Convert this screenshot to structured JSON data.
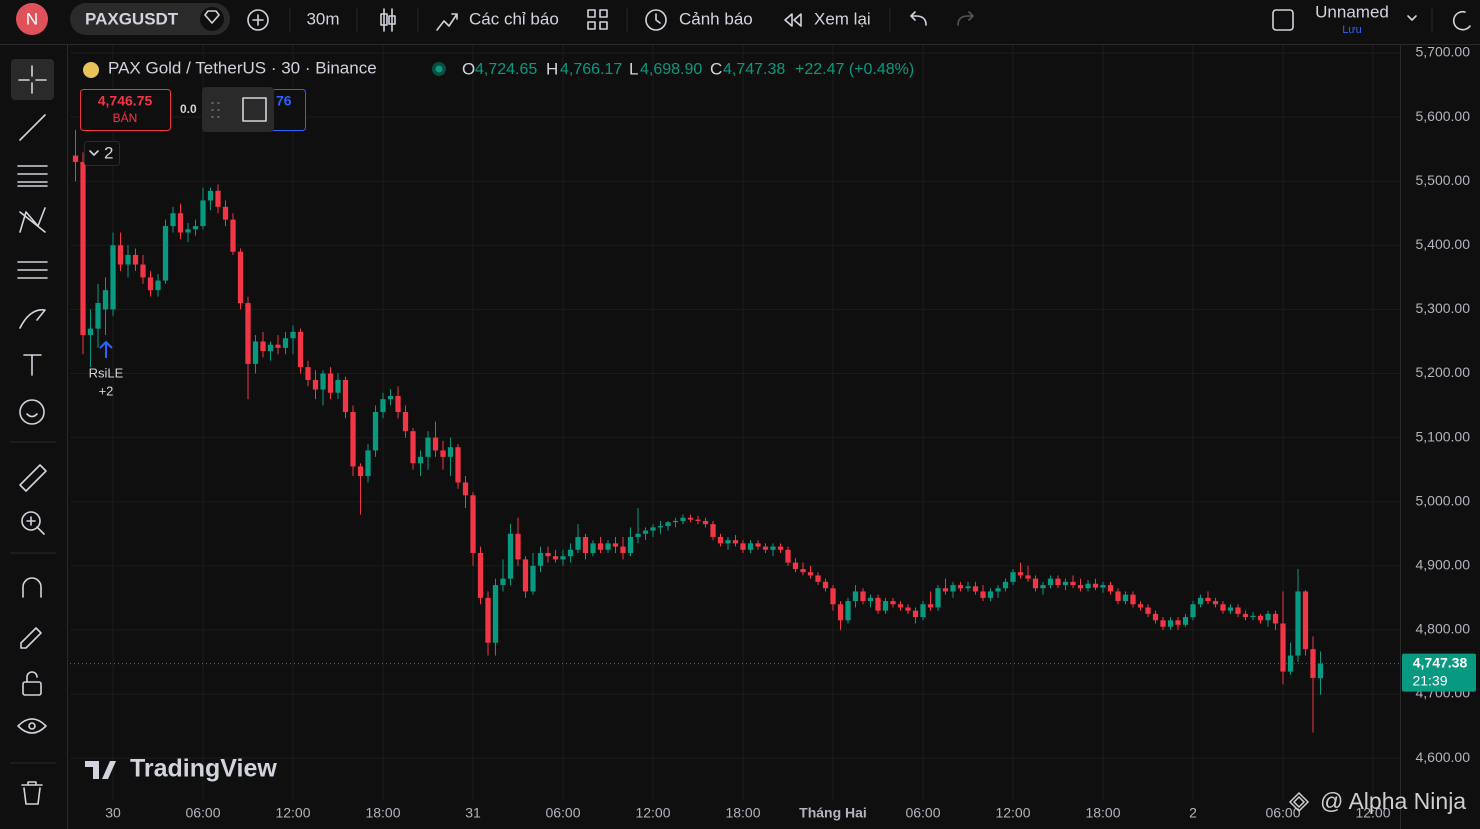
{
  "toolbar": {
    "avatar": "N",
    "symbol": "PAXGUSDT",
    "interval": "30m",
    "indicators": "Các chỉ báo",
    "alerts": "Cảnh báo",
    "replay": "Xem lại",
    "layout_name": "Unnamed",
    "save": "Lưu"
  },
  "legend": {
    "title": "PAX Gold / TetherUS · 30 · Binance",
    "o_label": "O",
    "o": "4,724.65",
    "h_label": "H",
    "h": "4,766.17",
    "l_label": "L",
    "l": "4,698.90",
    "c_label": "C",
    "c": "4,747.38",
    "change": "+22.47 (+0.48%)"
  },
  "trade": {
    "sell_price": "4,746.75",
    "sell_label": "BÁN",
    "spread": "0.0",
    "buy_price": "76"
  },
  "indicator_count": "2",
  "signal": {
    "label": "RsiLE",
    "count": "+2"
  },
  "watermark": "TradingView",
  "credit": "@ Alpha Ninja",
  "chart_data": {
    "type": "candlestick",
    "up_color": "#089981",
    "down_color": "#f23645",
    "grid": true,
    "x": [
      -2.5,
      -2,
      -1.5,
      -1,
      -0.5,
      0,
      0.5,
      1,
      1.5,
      2,
      2.5,
      3,
      3.5,
      4,
      4.5,
      5,
      5.5,
      6,
      6.5,
      7,
      7.5,
      8,
      8.5,
      9,
      9.5,
      10,
      10.5,
      11,
      11.5,
      12,
      12.5,
      13,
      13.5,
      14,
      14.5,
      15,
      15.5,
      16,
      16.5,
      17,
      17.5,
      18,
      18.5,
      19,
      19.5,
      20,
      20.5,
      21,
      21.5,
      22,
      22.5,
      23,
      23.5,
      24,
      24.5,
      25,
      25.5,
      26,
      26.5,
      27,
      27.5,
      28,
      28.5,
      29,
      29.5,
      30,
      30.5,
      31,
      31.5,
      32,
      32.5,
      33,
      33.5,
      34,
      34.5,
      35,
      35.5,
      36,
      36.5,
      37,
      37.5,
      38,
      38.5,
      39,
      39.5,
      40,
      40.5,
      41,
      41.5,
      42,
      42.5,
      43,
      43.5,
      44,
      44.5,
      45,
      45.5,
      46,
      46.5,
      47,
      47.5,
      48,
      48.5,
      49,
      49.5,
      50,
      50.5,
      51,
      51.5,
      52,
      52.5,
      53,
      53.5,
      54,
      54.5,
      55,
      55.5,
      56,
      56.5,
      57,
      57.5,
      58,
      58.5,
      59,
      59.5,
      60,
      60.5,
      61,
      61.5,
      62,
      62.5,
      63,
      63.5,
      64,
      64.5,
      65,
      65.5,
      66,
      66.5,
      67,
      67.5,
      68,
      68.5,
      69,
      69.5,
      70,
      70.5,
      71,
      71.5,
      72,
      72.5,
      73,
      73.5,
      74,
      74.5,
      75,
      75.5,
      76,
      76.5,
      77,
      77.5,
      78,
      78.5,
      79,
      79.5,
      80,
      80.5
    ],
    "ohlc": [
      [
        5540,
        5580,
        5500,
        5530
      ],
      [
        5530,
        5545,
        5230,
        5260
      ],
      [
        5260,
        5300,
        5210,
        5270
      ],
      [
        5270,
        5340,
        5240,
        5310
      ],
      [
        5300,
        5350,
        5260,
        5330
      ],
      [
        5300,
        5420,
        5290,
        5400
      ],
      [
        5400,
        5420,
        5360,
        5370
      ],
      [
        5370,
        5400,
        5350,
        5385
      ],
      [
        5385,
        5395,
        5360,
        5370
      ],
      [
        5370,
        5385,
        5340,
        5350
      ],
      [
        5350,
        5360,
        5320,
        5330
      ],
      [
        5330,
        5355,
        5320,
        5345
      ],
      [
        5345,
        5440,
        5340,
        5430
      ],
      [
        5430,
        5460,
        5420,
        5450
      ],
      [
        5450,
        5465,
        5410,
        5420
      ],
      [
        5420,
        5435,
        5405,
        5425
      ],
      [
        5425,
        5440,
        5415,
        5430
      ],
      [
        5430,
        5490,
        5425,
        5470
      ],
      [
        5470,
        5490,
        5455,
        5485
      ],
      [
        5485,
        5495,
        5450,
        5460
      ],
      [
        5460,
        5470,
        5430,
        5440
      ],
      [
        5440,
        5450,
        5385,
        5390
      ],
      [
        5390,
        5395,
        5300,
        5310
      ],
      [
        5310,
        5320,
        5160,
        5215
      ],
      [
        5215,
        5260,
        5200,
        5250
      ],
      [
        5250,
        5265,
        5225,
        5235
      ],
      [
        5235,
        5250,
        5220,
        5245
      ],
      [
        5245,
        5260,
        5230,
        5240
      ],
      [
        5240,
        5265,
        5230,
        5255
      ],
      [
        5255,
        5275,
        5230,
        5265
      ],
      [
        5265,
        5270,
        5200,
        5210
      ],
      [
        5210,
        5220,
        5180,
        5190
      ],
      [
        5190,
        5205,
        5160,
        5175
      ],
      [
        5175,
        5205,
        5150,
        5200
      ],
      [
        5200,
        5210,
        5160,
        5170
      ],
      [
        5170,
        5200,
        5160,
        5190
      ],
      [
        5190,
        5195,
        5130,
        5140
      ],
      [
        5140,
        5150,
        5040,
        5055
      ],
      [
        5055,
        5060,
        4980,
        5040
      ],
      [
        5040,
        5090,
        5030,
        5080
      ],
      [
        5080,
        5150,
        5070,
        5140
      ],
      [
        5140,
        5170,
        5130,
        5160
      ],
      [
        5160,
        5175,
        5150,
        5165
      ],
      [
        5165,
        5180,
        5130,
        5140
      ],
      [
        5140,
        5150,
        5100,
        5110
      ],
      [
        5110,
        5115,
        5050,
        5060
      ],
      [
        5060,
        5080,
        5040,
        5070
      ],
      [
        5070,
        5110,
        5050,
        5100
      ],
      [
        5100,
        5125,
        5070,
        5080
      ],
      [
        5080,
        5095,
        5050,
        5070
      ],
      [
        5070,
        5100,
        5040,
        5085
      ],
      [
        5085,
        5090,
        5020,
        5030
      ],
      [
        5030,
        5040,
        4990,
        5010
      ],
      [
        5010,
        5015,
        4900,
        4920
      ],
      [
        4920,
        4930,
        4840,
        4850
      ],
      [
        4850,
        4860,
        4760,
        4780
      ],
      [
        4780,
        4880,
        4760,
        4870
      ],
      [
        4870,
        4910,
        4860,
        4880
      ],
      [
        4880,
        4965,
        4870,
        4950
      ],
      [
        4950,
        4975,
        4900,
        4910
      ],
      [
        4910,
        4915,
        4850,
        4860
      ],
      [
        4860,
        4920,
        4855,
        4900
      ],
      [
        4900,
        4930,
        4890,
        4920
      ],
      [
        4920,
        4930,
        4905,
        4915
      ],
      [
        4915,
        4925,
        4905,
        4910
      ],
      [
        4910,
        4925,
        4900,
        4915
      ],
      [
        4915,
        4935,
        4905,
        4925
      ],
      [
        4925,
        4965,
        4920,
        4945
      ],
      [
        4945,
        4950,
        4910,
        4920
      ],
      [
        4920,
        4940,
        4915,
        4935
      ],
      [
        4935,
        4945,
        4920,
        4925
      ],
      [
        4925,
        4940,
        4920,
        4935
      ],
      [
        4935,
        4945,
        4920,
        4930
      ],
      [
        4930,
        4945,
        4910,
        4920
      ],
      [
        4920,
        4960,
        4915,
        4945
      ],
      [
        4945,
        4990,
        4935,
        4950
      ],
      [
        4950,
        4960,
        4940,
        4955
      ],
      [
        4955,
        4965,
        4945,
        4960
      ],
      [
        4960,
        4970,
        4950,
        4962
      ],
      [
        4962,
        4970,
        4955,
        4968
      ],
      [
        4968,
        4975,
        4960,
        4970
      ],
      [
        4970,
        4980,
        4965,
        4975
      ],
      [
        4975,
        4980,
        4968,
        4972
      ],
      [
        4972,
        4978,
        4965,
        4970
      ],
      [
        4970,
        4975,
        4960,
        4965
      ],
      [
        4965,
        4970,
        4940,
        4945
      ],
      [
        4945,
        4950,
        4930,
        4935
      ],
      [
        4935,
        4945,
        4925,
        4940
      ],
      [
        4940,
        4948,
        4930,
        4935
      ],
      [
        4935,
        4940,
        4920,
        4925
      ],
      [
        4925,
        4940,
        4920,
        4935
      ],
      [
        4935,
        4940,
        4925,
        4930
      ],
      [
        4930,
        4935,
        4920,
        4925
      ],
      [
        4925,
        4935,
        4915,
        4930
      ],
      [
        4930,
        4935,
        4920,
        4925
      ],
      [
        4925,
        4930,
        4900,
        4905
      ],
      [
        4905,
        4912,
        4890,
        4895
      ],
      [
        4895,
        4905,
        4885,
        4890
      ],
      [
        4890,
        4900,
        4880,
        4885
      ],
      [
        4885,
        4890,
        4870,
        4875
      ],
      [
        4875,
        4880,
        4860,
        4865
      ],
      [
        4865,
        4870,
        4830,
        4840
      ],
      [
        4840,
        4845,
        4800,
        4815
      ],
      [
        4815,
        4850,
        4810,
        4845
      ],
      [
        4845,
        4870,
        4835,
        4860
      ],
      [
        4860,
        4865,
        4840,
        4845
      ],
      [
        4845,
        4855,
        4835,
        4850
      ],
      [
        4850,
        4855,
        4825,
        4830
      ],
      [
        4830,
        4850,
        4825,
        4845
      ],
      [
        4845,
        4850,
        4835,
        4840
      ],
      [
        4840,
        4845,
        4830,
        4835
      ],
      [
        4835,
        4840,
        4825,
        4830
      ],
      [
        4830,
        4835,
        4810,
        4820
      ],
      [
        4820,
        4845,
        4815,
        4840
      ],
      [
        4840,
        4860,
        4830,
        4835
      ],
      [
        4835,
        4870,
        4830,
        4865
      ],
      [
        4865,
        4880,
        4855,
        4860
      ],
      [
        4860,
        4875,
        4850,
        4870
      ],
      [
        4870,
        4875,
        4860,
        4865
      ],
      [
        4865,
        4875,
        4860,
        4868
      ],
      [
        4868,
        4875,
        4855,
        4860
      ],
      [
        4860,
        4870,
        4845,
        4850
      ],
      [
        4850,
        4865,
        4845,
        4860
      ],
      [
        4860,
        4870,
        4850,
        4865
      ],
      [
        4865,
        4880,
        4860,
        4875
      ],
      [
        4875,
        4895,
        4870,
        4890
      ],
      [
        4890,
        4905,
        4880,
        4885
      ],
      [
        4885,
        4900,
        4875,
        4880
      ],
      [
        4880,
        4885,
        4860,
        4865
      ],
      [
        4865,
        4875,
        4855,
        4870
      ],
      [
        4870,
        4885,
        4865,
        4880
      ],
      [
        4880,
        4885,
        4865,
        4870
      ],
      [
        4870,
        4880,
        4862,
        4875
      ],
      [
        4875,
        4885,
        4865,
        4870
      ],
      [
        4870,
        4880,
        4860,
        4865
      ],
      [
        4865,
        4878,
        4860,
        4872
      ],
      [
        4872,
        4880,
        4862,
        4866
      ],
      [
        4866,
        4875,
        4858,
        4870
      ],
      [
        4870,
        4875,
        4855,
        4860
      ],
      [
        4860,
        4865,
        4840,
        4845
      ],
      [
        4845,
        4860,
        4840,
        4855
      ],
      [
        4855,
        4860,
        4835,
        4840
      ],
      [
        4840,
        4845,
        4830,
        4835
      ],
      [
        4835,
        4840,
        4820,
        4825
      ],
      [
        4825,
        4830,
        4810,
        4815
      ],
      [
        4815,
        4820,
        4800,
        4805
      ],
      [
        4805,
        4820,
        4800,
        4815
      ],
      [
        4815,
        4820,
        4800,
        4808
      ],
      [
        4808,
        4825,
        4805,
        4820
      ],
      [
        4820,
        4845,
        4815,
        4840
      ],
      [
        4840,
        4855,
        4835,
        4850
      ],
      [
        4850,
        4860,
        4840,
        4845
      ],
      [
        4845,
        4850,
        4835,
        4840
      ],
      [
        4840,
        4845,
        4825,
        4830
      ],
      [
        4830,
        4840,
        4825,
        4835
      ],
      [
        4835,
        4840,
        4820,
        4825
      ],
      [
        4825,
        4830,
        4815,
        4820
      ],
      [
        4820,
        4828,
        4815,
        4822
      ],
      [
        4822,
        4825,
        4810,
        4815
      ],
      [
        4815,
        4830,
        4805,
        4825
      ],
      [
        4825,
        4830,
        4800,
        4810
      ],
      [
        4810,
        4860,
        4715,
        4735
      ],
      [
        4735,
        4780,
        4730,
        4760
      ],
      [
        4760,
        4895,
        4750,
        4860
      ],
      [
        4860,
        4862,
        4760,
        4770
      ],
      [
        4770,
        4790,
        4640,
        4725
      ],
      [
        4724.65,
        4766.17,
        4698.9,
        4747.38
      ]
    ],
    "xlim": [
      -2.867,
      85.8
    ],
    "xticks": [
      {
        "value": 0,
        "label": "30"
      },
      {
        "value": 6,
        "label": "06:00"
      },
      {
        "value": 12,
        "label": "12:00"
      },
      {
        "value": 18,
        "label": "18:00"
      },
      {
        "value": 24,
        "label": "31"
      },
      {
        "value": 30,
        "label": "06:00"
      },
      {
        "value": 36,
        "label": "12:00"
      },
      {
        "value": 42,
        "label": "18:00"
      },
      {
        "value": 48,
        "label": "Tháng Hai"
      },
      {
        "value": 54,
        "label": "06:00"
      },
      {
        "value": 60,
        "label": "12:00"
      },
      {
        "value": 66,
        "label": "18:00"
      },
      {
        "value": 72,
        "label": "2"
      },
      {
        "value": 78,
        "label": "06:00"
      },
      {
        "value": 84,
        "label": "12:00"
      }
    ],
    "ylim": [
      4489.4,
      5712.5
    ],
    "yticks": [
      {
        "value": 4600,
        "label": "4,600.00"
      },
      {
        "value": 4700,
        "label": "4,700.00"
      },
      {
        "value": 4800,
        "label": "4,800.00"
      },
      {
        "value": 4900,
        "label": "4,900.00"
      },
      {
        "value": 5000,
        "label": "5,000.00"
      },
      {
        "value": 5100,
        "label": "5,100.00"
      },
      {
        "value": 5200,
        "label": "5,200.00"
      },
      {
        "value": 5300,
        "label": "5,300.00"
      },
      {
        "value": 5400,
        "label": "5,400.00"
      },
      {
        "value": 5500,
        "label": "5,500.00"
      },
      {
        "value": 5600,
        "label": "5,600.00"
      },
      {
        "value": 5700,
        "label": "5,700.00"
      }
    ],
    "last_price": {
      "value": 4747.38,
      "label": "4,747.38"
    },
    "countdown": "21:39"
  }
}
